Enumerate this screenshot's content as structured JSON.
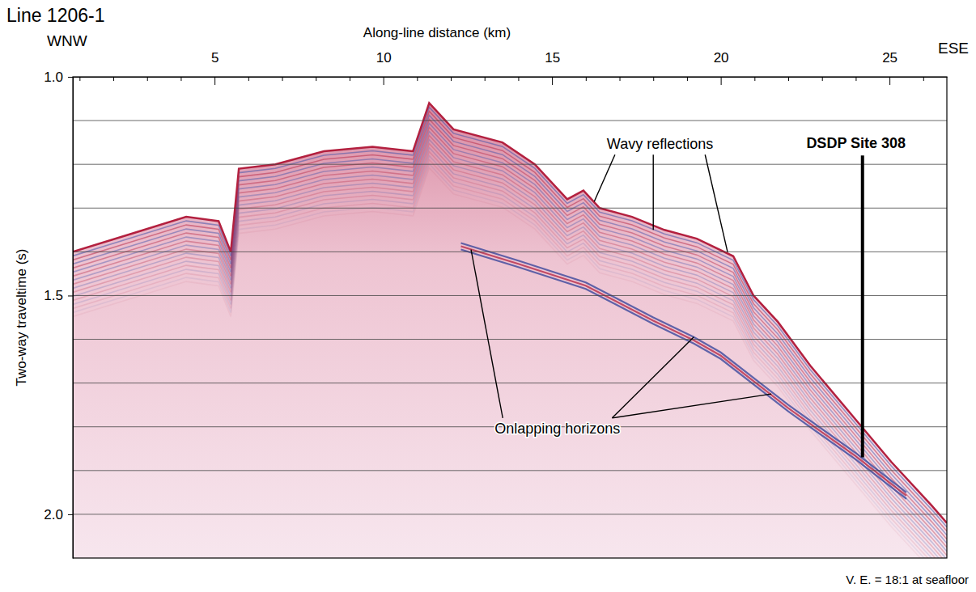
{
  "chart_data": {
    "type": "seismic_profile",
    "title": "Line 1206-1",
    "x_left_label": "WNW",
    "x_right_label": "ESE",
    "x_axis_label": "Along-line distance (km)",
    "y_axis_label": "Two-way traveltime (s)",
    "footnote": "V. E. = 18:1 at seafloor",
    "xlim": [
      0.8,
      26.7
    ],
    "xticks": [
      5,
      10,
      15,
      20,
      25
    ],
    "x_minor_ticks": [
      1,
      2,
      3,
      4,
      6,
      7,
      8,
      9,
      11,
      12,
      13,
      14,
      16,
      17,
      18,
      19,
      21,
      22,
      23,
      24,
      26
    ],
    "ylim": [
      1.0,
      2.1
    ],
    "yticks": [
      {
        "value": 1.0,
        "label": "1.0"
      },
      1.5,
      {
        "value": 2.0,
        "label": "2.0"
      }
    ],
    "y_grid": [
      1.1,
      1.2,
      1.3,
      1.4,
      1.5,
      1.6,
      1.7,
      1.8,
      1.9,
      2.0
    ],
    "grid": true,
    "seafloor": {
      "color": "#b3203f",
      "x": [
        0.8,
        2.48,
        4.16,
        5.12,
        5.48,
        5.72,
        6.8,
        8.24,
        9.68,
        10.88,
        11.36,
        12.08,
        13.53,
        14.49,
        15.45,
        15.93,
        16.41,
        17.37,
        18.33,
        19.29,
        20.37,
        20.97,
        21.69,
        22.65,
        23.85,
        25.05,
        26.25,
        26.7
      ],
      "y": [
        1.4,
        1.36,
        1.32,
        1.33,
        1.4,
        1.21,
        1.2,
        1.17,
        1.16,
        1.17,
        1.06,
        1.12,
        1.15,
        1.2,
        1.28,
        1.26,
        1.3,
        1.32,
        1.35,
        1.37,
        1.41,
        1.5,
        1.56,
        1.66,
        1.77,
        1.88,
        1.98,
        2.02
      ]
    },
    "horizon": {
      "color": "#2f3f98",
      "x": [
        12.3,
        14.0,
        16.0,
        18.0,
        19.2,
        20.0,
        21.5,
        22.0,
        24.0,
        25.5
      ],
      "y": [
        1.38,
        1.42,
        1.47,
        1.55,
        1.595,
        1.63,
        1.72,
        1.75,
        1.86,
        1.95
      ]
    },
    "site": {
      "label": "DSDP Site 308",
      "x": 24.2,
      "y": [
        1.18,
        1.87
      ]
    },
    "annotations": [
      {
        "text": "Wavy reflections",
        "x": 18.2,
        "y": 1.165,
        "targets": [
          [
            16.25,
            1.285
          ],
          [
            18.0,
            1.35
          ],
          [
            20.2,
            1.4
          ]
        ]
      },
      {
        "text": "Onlapping horizons",
        "x": 13.3,
        "y": 1.815,
        "targets": [
          [
            12.6,
            1.395
          ],
          [
            19.2,
            1.595
          ],
          [
            21.5,
            1.725
          ]
        ]
      }
    ]
  }
}
